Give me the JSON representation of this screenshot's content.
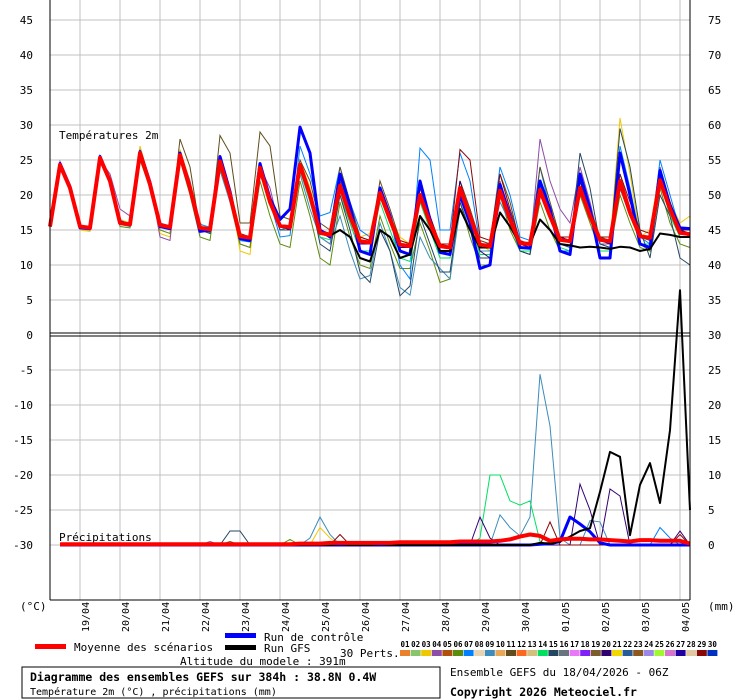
{
  "chart_data": {
    "type": "line",
    "title": "Diagramme des ensembles GEFS sur 384h : 38.8N 0.4W",
    "subtitle": "Température 2m (°C) , précipitations (mm)",
    "run_label": "Ensemble GEFS du 18/04/2026 - 06Z",
    "copyright": "Copyright 2026 Meteociel.fr",
    "altitude_label": "Altitude du modele : 391m",
    "panel_temp_label": "Températures 2m",
    "panel_precip_label": "Précipitations",
    "left_unit": "(°C)",
    "right_unit": "(mm)",
    "left_ticks": [
      "45",
      "40",
      "35",
      "30",
      "25",
      "20",
      "15",
      "10",
      "5",
      "0",
      "-5",
      "-10",
      "-15",
      "-20",
      "-25",
      "-30"
    ],
    "right_ticks": [
      "75",
      "70",
      "65",
      "60",
      "55",
      "50",
      "45",
      "40",
      "35",
      "30",
      "25",
      "20",
      "15",
      "10",
      "5",
      "0"
    ],
    "temp_ylim": [
      -35,
      48
    ],
    "precip_ylim": [
      0,
      37
    ],
    "grid": true,
    "time_step_hours": 6,
    "range_hours": 384,
    "date_labels": [
      "19/04",
      "20/04",
      "21/04",
      "22/04",
      "23/04",
      "24/04",
      "25/04",
      "26/04",
      "27/04",
      "28/04",
      "29/04",
      "30/04",
      "01/05",
      "02/05",
      "03/05",
      "04/05"
    ],
    "legend": {
      "mean": "Moyenne des scénarios",
      "control": "Run de contrôle",
      "gfs": "Run GFS",
      "perts": "30 Perts.",
      "pert_ids": [
        "01",
        "02",
        "03",
        "04",
        "05",
        "06",
        "07",
        "08",
        "09",
        "10",
        "11",
        "12",
        "13",
        "14",
        "15",
        "16",
        "17",
        "18",
        "19",
        "20",
        "21",
        "22",
        "23",
        "24",
        "25",
        "26",
        "27",
        "28",
        "29",
        "30"
      ],
      "pert_colors": [
        "#e8802c",
        "#88c46c",
        "#f0c800",
        "#8c4ca8",
        "#b0500c",
        "#5c8c0c",
        "#0080ff",
        "#e8d4b0",
        "#3c8cbc",
        "#e8a858",
        "#604c1c",
        "#fc6820",
        "#d4c07c",
        "#00e060",
        "#244660",
        "#687480",
        "#e878f8",
        "#8020f8",
        "#7c5c2c",
        "#300070",
        "#f0d800",
        "#285c98",
        "#8c5820",
        "#9c88e8",
        "#a0f830",
        "#d874d0",
        "#2000a0",
        "#e0c8a0",
        "#880808",
        "#0030c0"
      ]
    },
    "colors": {
      "mean": "#ff0000",
      "control": "#0000ff",
      "gfs": "#000000"
    },
    "series": {
      "mean": {
        "temp": [
          15.5,
          24.3,
          21,
          15.5,
          15.3,
          25.3,
          22,
          16,
          15.8,
          26,
          21.5,
          15.7,
          15.4,
          25.7,
          21,
          15.3,
          15.1,
          24.8,
          20,
          14.1,
          13.9,
          23.9,
          19,
          15.6,
          15.4,
          24.3,
          20,
          14.6,
          14.3,
          21.3,
          17,
          13.4,
          13.2,
          20.3,
          16.5,
          12.9,
          12.7,
          20,
          16,
          12.7,
          12.5,
          21,
          17,
          12.9,
          12.7,
          20.6,
          16.5,
          13.1,
          13,
          20.7,
          17,
          13.6,
          13.4,
          21,
          17,
          13.6,
          13.4,
          22,
          17.5,
          14.1,
          13.9,
          22.1,
          18,
          14.6,
          14.4
        ],
        "precip": [
          0.1,
          0.1,
          0.1,
          0.1,
          0.1,
          0.1,
          0.1,
          0.1,
          0.1,
          0.1,
          0.1,
          0.1,
          0.1,
          0.1,
          0.1,
          0.1,
          0.1,
          0.1,
          0.1,
          0.1,
          0.1,
          0.1,
          0.1,
          0.1,
          0.2,
          0.2,
          0.2,
          0.3,
          0.3,
          0.3,
          0.3,
          0.3,
          0.3,
          0.3,
          0.4,
          0.4,
          0.4,
          0.4,
          0.4,
          0.4,
          0.5,
          0.5,
          0.5,
          0.5,
          0.6,
          0.8,
          1.2,
          1.5,
          1.3,
          0.6,
          0.8,
          0.9,
          0.9,
          0.8,
          0.8,
          0.7,
          0.6,
          0.5,
          0.7,
          0.7,
          0.6,
          0.6,
          0.6,
          0.2
        ]
      },
      "control": {
        "temp": [
          15.5,
          24.5,
          21.2,
          15.3,
          15.2,
          25.5,
          22,
          16.2,
          15.7,
          26.2,
          21.8,
          15.5,
          15.2,
          26,
          21,
          14.8,
          15,
          25.5,
          20.5,
          13.8,
          13.5,
          24.5,
          19.5,
          16.5,
          18,
          29.7,
          26,
          15,
          14,
          23,
          18.5,
          12,
          11.5,
          21,
          17,
          12,
          11.5,
          22,
          16.5,
          11.8,
          11.5,
          20,
          16,
          9.5,
          10,
          21.5,
          17,
          12.5,
          12.4,
          22,
          18,
          12,
          11.5,
          23,
          18,
          11,
          11,
          26,
          20,
          13,
          12.5,
          23.5,
          18.5,
          15.3,
          15.2
        ],
        "precip": [
          0,
          0,
          0,
          0,
          0,
          0,
          0,
          0,
          0,
          0,
          0,
          0,
          0,
          0,
          0,
          0,
          0,
          0,
          0,
          0,
          0,
          0,
          0,
          0,
          0,
          0,
          0,
          0,
          0,
          0,
          0,
          0,
          0,
          0,
          0,
          0,
          0,
          0,
          0,
          0,
          0,
          0,
          0,
          0,
          0,
          0,
          0,
          0,
          0.1,
          0.2,
          0.5,
          4,
          3,
          1.9,
          0.3,
          0,
          0,
          0,
          0,
          0,
          0,
          0,
          0,
          0
        ]
      },
      "gfs": {
        "temp": [
          15.5,
          24.2,
          21,
          15.4,
          15.2,
          25.2,
          22,
          16,
          15.7,
          26,
          21.4,
          15.6,
          15.3,
          25.6,
          21,
          15.2,
          15,
          24.6,
          20,
          14,
          13.8,
          23.8,
          19,
          15.5,
          15.3,
          24.2,
          20,
          14.5,
          14.2,
          15,
          14,
          11,
          10.5,
          15,
          14,
          11,
          11.5,
          17,
          15,
          12,
          12,
          18,
          15,
          12.5,
          12.5,
          17.5,
          15.5,
          13,
          13,
          16.5,
          15,
          13,
          12.8,
          12.5,
          12.6,
          12.5,
          12.3,
          12.6,
          12.5,
          12,
          12.3,
          14.5,
          14.3,
          14,
          14
        ],
        "precip": [
          0,
          0,
          0,
          0,
          0,
          0,
          0,
          0,
          0,
          0,
          0,
          0,
          0,
          0,
          0,
          0,
          0,
          0,
          0,
          0,
          0,
          0,
          0,
          0,
          0,
          0,
          0,
          0,
          0.1,
          0,
          0,
          0,
          0.1,
          0,
          0,
          0,
          0,
          0,
          0,
          0,
          0,
          0,
          0,
          0,
          0,
          0,
          0,
          0,
          0.3,
          0.2,
          0.5,
          1.2,
          2,
          2.4,
          7.6,
          13.3,
          12.6,
          1.4,
          8.6,
          11.7,
          6,
          16.4,
          36.4,
          5
        ]
      }
    },
    "perturbations": [
      {
        "id": "03",
        "temp": [
          15.6,
          24,
          21,
          15,
          14.8,
          25,
          22.5,
          16.5,
          16,
          27,
          22,
          14.5,
          14,
          26.5,
          22,
          16,
          15,
          25.5,
          21,
          12,
          11.5,
          24,
          20,
          15,
          15.5,
          25,
          21,
          15,
          14,
          22,
          18,
          14,
          14.5,
          21,
          17,
          14,
          13,
          19,
          16,
          12,
          12,
          22,
          18,
          13,
          12,
          21,
          17,
          13,
          12.5,
          22,
          18,
          14,
          14,
          23,
          18,
          14,
          13,
          31,
          23,
          14,
          15,
          24,
          19,
          16,
          17
        ],
        "precip_mm_by_hour": {
          "162": 2.5,
          "168": 1
        }
      },
      {
        "id": "04",
        "temp": [
          15.5,
          24.8,
          21.5,
          15.6,
          15.5,
          25,
          23,
          18,
          17,
          25,
          22,
          14,
          13.5,
          26,
          22,
          15,
          14.5,
          24,
          21,
          13,
          12.5,
          24,
          21,
          15,
          15.5,
          24,
          20,
          14,
          13,
          20,
          16,
          12,
          12,
          20,
          17,
          13,
          12.5,
          21,
          17,
          12,
          11.5,
          22,
          18,
          13.5,
          13,
          22,
          17,
          13,
          12.5,
          28,
          22,
          18,
          16,
          24,
          19,
          13,
          13,
          23,
          18,
          13,
          12,
          24,
          19,
          15,
          14
        ],
        "precip_mm_by_hour": {
          "96": 0.5
        }
      },
      {
        "id": "06",
        "temp": [
          15.5,
          24,
          21,
          15.4,
          15.2,
          25,
          21.5,
          15.5,
          15.3,
          25,
          21,
          15,
          14.5,
          25,
          20,
          14,
          13.5,
          24,
          19,
          13,
          12.5,
          22,
          17,
          13,
          12.5,
          22,
          17,
          11,
          10,
          19,
          14,
          10,
          9.5,
          17,
          13,
          9.5,
          9.5,
          16,
          12,
          7.5,
          8,
          19,
          14,
          10,
          10,
          20,
          15,
          12,
          11.5,
          19,
          15,
          12,
          12,
          20,
          16,
          12,
          12,
          20,
          16,
          12.5,
          12,
          21,
          16,
          13,
          12.5
        ],
        "precip_mm_by_hour": {
          "144": 0.8
        }
      },
      {
        "id": "07",
        "temp": [
          15.5,
          24.4,
          21,
          15.6,
          15.4,
          25.5,
          22,
          16,
          15.8,
          26.5,
          22,
          16,
          15.6,
          26,
          21.5,
          15.8,
          15.4,
          25,
          20,
          13.5,
          13.3,
          24,
          19,
          14,
          14.2,
          27,
          23,
          17,
          17.5,
          24,
          19,
          15,
          14,
          20.5,
          17,
          10,
          8,
          26.7,
          25,
          15,
          15,
          26,
          22,
          13,
          13,
          24,
          20,
          14,
          13.5,
          24,
          18,
          12,
          12,
          21,
          17,
          14,
          13,
          27,
          21,
          14,
          13,
          25,
          20,
          15,
          14.5
        ],
        "precip_mm_by_hour": {
          "366": 2.5,
          "372": 1
        }
      },
      {
        "id": "09",
        "temp": [
          15.5,
          24,
          20.8,
          15.2,
          15,
          24.8,
          21.5,
          15.8,
          15.5,
          25.5,
          21,
          16,
          15.5,
          25,
          20.5,
          15,
          14.6,
          23.5,
          19,
          14,
          14,
          23,
          19,
          15,
          15.4,
          23,
          18,
          14,
          13,
          17,
          12,
          8,
          8.5,
          16,
          12,
          6.8,
          5.7,
          14,
          11,
          9.5,
          8,
          18,
          15,
          12,
          12,
          19,
          16,
          12,
          11.5,
          20,
          17,
          13,
          12.5,
          21,
          17,
          13,
          12.5,
          21,
          17,
          14,
          13.5,
          22,
          18,
          14,
          14
        ],
        "precip_mm_by_hour": {
          "156": 1,
          "162": 4,
          "168": 1.5,
          "270": 4.3,
          "276": 2.5,
          "282": 1.3,
          "288": 4,
          "294": 24.4,
          "300": 17,
          "306": 1,
          "324": 3.5,
          "330": 3.3
        }
      },
      {
        "id": "11",
        "temp": [
          15.5,
          24.3,
          21,
          15.3,
          15.3,
          25.3,
          22,
          16.2,
          15.8,
          26,
          22,
          15.5,
          15.2,
          28,
          24,
          15,
          14.8,
          28.5,
          26,
          16,
          16,
          29,
          27,
          17,
          16.5,
          25,
          22,
          16,
          15,
          24,
          19,
          14,
          13.5,
          22,
          18,
          13.5,
          13,
          21,
          17,
          13,
          12.5,
          22,
          18,
          13.5,
          13,
          23,
          19,
          13,
          12.5,
          24,
          19,
          14,
          13.5,
          22,
          18,
          14,
          13.5,
          21,
          17,
          14,
          13.5,
          22,
          18,
          14,
          14
        ],
        "precip_mm_by_hour": {
          "108": 0.5
        }
      },
      {
        "id": "14",
        "temp": [
          15.5,
          24.2,
          21,
          15.5,
          15.3,
          25.2,
          22,
          16,
          15.7,
          25.8,
          21.5,
          15.5,
          15.2,
          25.5,
          21,
          15,
          14.8,
          24.5,
          19.5,
          13.8,
          13.5,
          23.5,
          18.5,
          15.5,
          15.2,
          23.5,
          19,
          14,
          13.6,
          20,
          16,
          12,
          12,
          19,
          15,
          11,
          10.5,
          19,
          15,
          11,
          11,
          20,
          16,
          11.5,
          11.5,
          20,
          16,
          12,
          12,
          21,
          17,
          12.5,
          12,
          22,
          17,
          12,
          12,
          23,
          18,
          13,
          13,
          22,
          17,
          14,
          14
        ],
        "precip_mm_by_hour": {
          "258": 1,
          "264": 10,
          "270": 10,
          "276": 6.3,
          "282": 5.7,
          "288": 6.3,
          "294": 0.5
        }
      },
      {
        "id": "15",
        "temp": [
          15.5,
          24.5,
          21.3,
          15.6,
          15.4,
          25.6,
          22.2,
          16,
          15.8,
          26.3,
          21.8,
          15.4,
          15.2,
          25,
          21,
          15,
          14.5,
          24,
          19.5,
          14,
          13.5,
          23,
          19,
          15,
          15,
          24,
          20,
          13,
          12,
          20,
          15,
          9,
          7.5,
          15,
          12,
          5.6,
          7,
          17,
          13,
          9,
          9,
          19,
          15,
          11,
          11,
          21,
          17,
          12,
          11.5,
          22,
          17,
          13,
          12.5,
          26,
          21,
          13,
          12.5,
          29.5,
          24,
          15,
          11,
          20,
          17,
          11,
          10
        ],
        "precip_mm_by_hour": {
          "108": 2,
          "114": 2
        }
      },
      {
        "id": "20",
        "temp": [
          15.5,
          24.3,
          21,
          15.5,
          15.3,
          25.3,
          22,
          16,
          15.8,
          26,
          21.5,
          15.7,
          15.4,
          25.5,
          21,
          15,
          14.8,
          24.5,
          20,
          14,
          13.5,
          24,
          19,
          15.5,
          15,
          24,
          20,
          14.5,
          14,
          21,
          17,
          13,
          13,
          20,
          16.5,
          12.5,
          12.5,
          20,
          16,
          12,
          12,
          22,
          17,
          12,
          11,
          21,
          16.5,
          13,
          12.5,
          21,
          17,
          14,
          13.5,
          22,
          17,
          13.5,
          13,
          22,
          17,
          14,
          14,
          23,
          18,
          15,
          14.5
        ],
        "precip_mm_by_hour": {
          "258": 4,
          "264": 1,
          "318": 8.7,
          "324": 5,
          "336": 8,
          "342": 7,
          "378": 2
        }
      },
      {
        "id": "29",
        "temp": [
          15.5,
          24.3,
          21,
          15.5,
          15.3,
          25.3,
          22,
          16,
          15.8,
          26,
          21.5,
          15.7,
          15.4,
          25.5,
          21,
          15.5,
          15.3,
          24.5,
          20,
          14.5,
          14,
          24,
          19.5,
          15.5,
          15.5,
          24.5,
          20.5,
          15,
          14.5,
          22,
          17.5,
          14,
          13.5,
          21,
          17,
          13.5,
          13,
          21,
          17,
          13,
          13,
          26.5,
          25,
          14,
          13.5,
          23,
          18,
          13.5,
          13,
          22,
          18,
          14,
          14,
          23,
          18,
          14,
          14,
          23,
          19,
          15,
          14.5,
          23,
          19,
          15,
          15
        ],
        "precip_mm_by_hour": {
          "174": 1.5,
          "300": 3.3,
          "378": 1.5
        }
      }
    ]
  }
}
